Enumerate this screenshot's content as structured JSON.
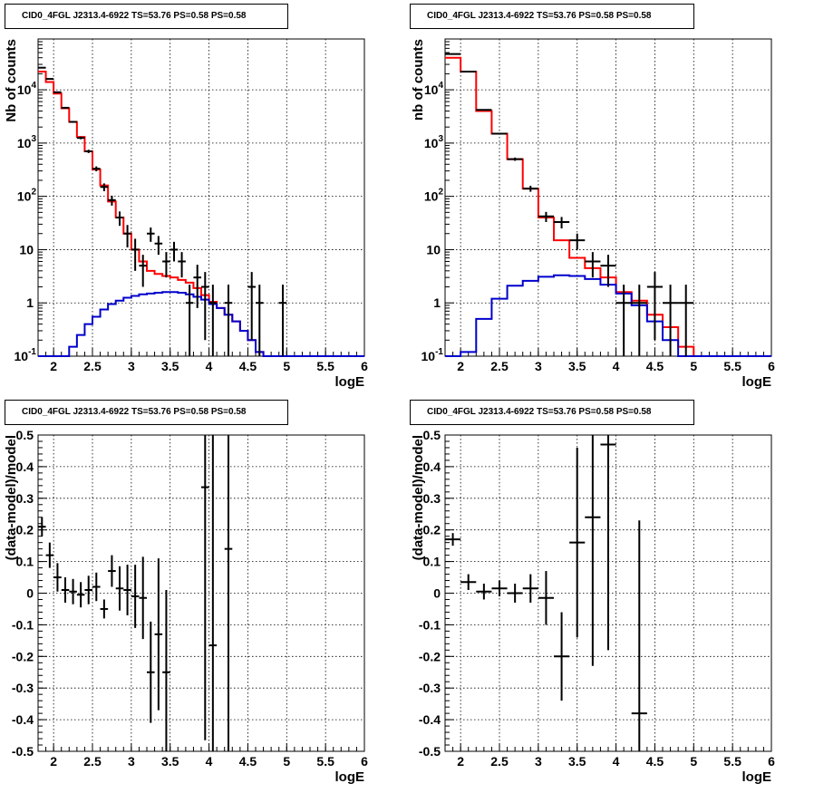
{
  "chart_data": [
    {
      "type": "line",
      "title": "CID0_4FGL J2313.4-6922 TS=53.76 PS=0.58 PS=0.58",
      "xlabel": "logE",
      "ylabel": "Nb of counts",
      "ylog": true,
      "xlim": [
        1.8,
        6.0
      ],
      "ylim": [
        0.1,
        90000
      ],
      "grid": true,
      "x_ticks": [
        "2",
        "2.5",
        "3",
        "3.5",
        "4",
        "4.5",
        "5",
        "5.5",
        "6"
      ],
      "y_ticks": [
        "10^-1",
        "1",
        "10",
        "10^2",
        "10^3",
        "10^4"
      ],
      "hist_edges": [
        1.8,
        1.9,
        2.0,
        2.1,
        2.2,
        2.3,
        2.4,
        2.5,
        2.6,
        2.7,
        2.8,
        2.9,
        3.0,
        3.1,
        3.2,
        3.3,
        3.4,
        3.5,
        3.6,
        3.7,
        3.8,
        3.9,
        4.0,
        4.1,
        4.2,
        4.3,
        4.4,
        4.5,
        4.6,
        4.7,
        4.8,
        4.9,
        5.0,
        5.1,
        5.2,
        5.3,
        5.4,
        5.5,
        5.6,
        5.7,
        5.8,
        5.9,
        6.0
      ],
      "series": [
        {
          "name": "",
          "kind": "hist",
          "color": "#ff0000",
          "values": [
            22000,
            14000,
            8500,
            4500,
            2500,
            1300,
            700,
            320,
            160,
            80,
            40,
            20,
            10,
            6,
            4,
            3.5,
            3.2,
            3,
            2.7,
            2.4,
            1.9,
            1.4,
            1.05,
            0.8,
            0.6,
            0.45,
            0.3,
            0.2,
            0.12,
            0.1,
            0.1,
            0.1,
            0.1,
            0.1,
            0.1,
            0.1,
            0.1,
            0.1,
            0.1,
            0.1,
            0.1,
            0.1
          ]
        },
        {
          "name": "",
          "kind": "hist",
          "color": "#0000cc",
          "values": [
            0.1,
            0.1,
            0.1,
            0.1,
            0.15,
            0.25,
            0.4,
            0.55,
            0.75,
            0.95,
            1.1,
            1.25,
            1.35,
            1.45,
            1.5,
            1.55,
            1.6,
            1.6,
            1.55,
            1.45,
            1.3,
            1.15,
            0.95,
            0.8,
            0.6,
            0.45,
            0.3,
            0.2,
            0.12,
            0.1,
            0.1,
            0.1,
            0.1,
            0.1,
            0.1,
            0.1,
            0.1,
            0.1,
            0.1,
            0.1,
            0.1,
            0.1
          ]
        },
        {
          "name": "",
          "kind": "points",
          "color": "#000000",
          "x": [
            1.85,
            1.95,
            2.05,
            2.15,
            2.25,
            2.35,
            2.45,
            2.55,
            2.65,
            2.75,
            2.85,
            2.95,
            3.05,
            3.15,
            3.25,
            3.35,
            3.45,
            3.55,
            3.65,
            3.75,
            3.85,
            3.95,
            4.05,
            4.25,
            4.55,
            4.65,
            4.95
          ],
          "y": [
            26000,
            16000,
            9000,
            4600,
            2500,
            1250,
            700,
            330,
            150,
            85,
            40,
            20,
            10,
            5,
            20,
            13,
            6,
            10,
            6,
            1,
            3,
            2,
            1,
            1,
            2,
            1,
            1
          ],
          "yerr": [
            300,
            250,
            190,
            130,
            100,
            70,
            50,
            35,
            25,
            18,
            12,
            9,
            6,
            3,
            6,
            5,
            3,
            4,
            3,
            1.2,
            2.2,
            1.8,
            1.2,
            1.2,
            1.8,
            1.2,
            1.2
          ]
        }
      ]
    },
    {
      "type": "line",
      "title": "CID0_4FGL J2313.4-6922 TS=53.76 PS=0.58 PS=0.58",
      "xlabel": "logE",
      "ylabel": "nb of counts",
      "ylog": true,
      "xlim": [
        1.8,
        6.0
      ],
      "ylim": [
        0.1,
        90000
      ],
      "grid": true,
      "x_ticks": [
        "2",
        "2.5",
        "3",
        "3.5",
        "4",
        "4.5",
        "5",
        "5.5",
        "6"
      ],
      "y_ticks": [
        "10^-1",
        "1",
        "10",
        "10^2",
        "10^3",
        "10^4"
      ],
      "hist_edges": [
        1.8,
        2.0,
        2.2,
        2.4,
        2.6,
        2.8,
        3.0,
        3.2,
        3.4,
        3.6,
        3.8,
        4.0,
        4.2,
        4.4,
        4.6,
        4.8,
        5.0,
        5.2,
        5.4,
        5.6,
        5.8,
        6.0
      ],
      "series": [
        {
          "name": "",
          "kind": "hist",
          "color": "#ff0000",
          "values": [
            40000,
            22000,
            4000,
            1500,
            500,
            140,
            40,
            15,
            7,
            4.5,
            3,
            1.6,
            1.1,
            0.6,
            0.35,
            0.15,
            0.1,
            0.1,
            0.1,
            0.1,
            0.1
          ]
        },
        {
          "name": "",
          "kind": "hist",
          "color": "#0000cc",
          "values": [
            0.1,
            0.12,
            0.5,
            1.2,
            2.1,
            2.6,
            3.1,
            3.3,
            3.2,
            2.8,
            2.2,
            1.5,
            0.9,
            0.45,
            0.2,
            0.1,
            0.1,
            0.1,
            0.1,
            0.1,
            0.1
          ]
        },
        {
          "name": "",
          "kind": "points",
          "color": "#000000",
          "x": [
            1.9,
            2.1,
            2.3,
            2.5,
            2.7,
            2.9,
            3.1,
            3.3,
            3.5,
            3.7,
            3.9,
            4.1,
            4.3,
            4.5,
            4.7,
            4.9
          ],
          "y": [
            47000,
            22000,
            4200,
            1500,
            500,
            140,
            42,
            33,
            15,
            6,
            5,
            1,
            1,
            2,
            1,
            1
          ],
          "yerr": [
            400,
            250,
            100,
            60,
            35,
            18,
            9,
            8,
            5,
            3,
            3,
            1.2,
            1.2,
            1.8,
            1.2,
            1.2
          ]
        }
      ]
    },
    {
      "type": "scatter",
      "title": "CID0_4FGL J2313.4-6922 TS=53.76 PS=0.58 PS=0.58",
      "xlabel": "logE",
      "ylabel": "(data-model)/model",
      "ylog": false,
      "xlim": [
        1.8,
        6.0
      ],
      "ylim": [
        -0.5,
        0.5
      ],
      "grid": true,
      "x_ticks": [
        "2",
        "2.5",
        "3",
        "3.5",
        "4",
        "4.5",
        "5",
        "5.5",
        "6"
      ],
      "y_ticks": [
        "-0.5",
        "-0.4",
        "-0.3",
        "-0.2",
        "-0.1",
        "0",
        "0.1",
        "0.2",
        "0.3",
        "0.4",
        "0.5"
      ],
      "series": [
        {
          "name": "",
          "kind": "points",
          "color": "#000000",
          "x": [
            1.85,
            1.95,
            2.05,
            2.15,
            2.25,
            2.35,
            2.45,
            2.55,
            2.65,
            2.75,
            2.85,
            2.95,
            3.05,
            3.15,
            3.25,
            3.35,
            3.45,
            3.95,
            4.05,
            4.25
          ],
          "y": [
            0.21,
            0.12,
            0.05,
            0.01,
            0.005,
            -0.005,
            0.01,
            0.02,
            -0.05,
            0.07,
            0.015,
            0.01,
            -0.01,
            -0.015,
            -0.25,
            -0.13,
            -0.25,
            0.335,
            -0.165,
            0.14
          ],
          "yerr": [
            0.03,
            0.04,
            0.045,
            0.04,
            0.04,
            0.04,
            0.045,
            0.045,
            0.03,
            0.05,
            0.07,
            0.08,
            0.1,
            0.13,
            0.16,
            0.24,
            0.26,
            0.8,
            0.8,
            0.75
          ]
        }
      ]
    },
    {
      "type": "scatter",
      "title": "CID0_4FGL J2313.4-6922 TS=53.76 PS=0.58 PS=0.58",
      "xlabel": "logE",
      "ylabel": "(data-model)/model",
      "ylog": false,
      "xlim": [
        1.8,
        6.0
      ],
      "ylim": [
        -0.5,
        0.5
      ],
      "grid": true,
      "x_ticks": [
        "2",
        "2.5",
        "3",
        "3.5",
        "4",
        "4.5",
        "5",
        "5.5",
        "6"
      ],
      "y_ticks": [
        "-0.5",
        "-0.4",
        "-0.3",
        "-0.2",
        "-0.1",
        "0",
        "0.1",
        "0.2",
        "0.3",
        "0.4",
        "0.5"
      ],
      "series": [
        {
          "name": "",
          "kind": "points",
          "color": "#000000",
          "x": [
            1.9,
            2.1,
            2.3,
            2.5,
            2.7,
            2.9,
            3.1,
            3.3,
            3.5,
            3.7,
            3.9,
            4.3
          ],
          "y": [
            0.17,
            0.035,
            0.005,
            0.015,
            0.0,
            0.015,
            -0.015,
            -0.2,
            0.16,
            0.24,
            0.47,
            -0.38
          ],
          "yerr": [
            0.02,
            0.025,
            0.025,
            0.025,
            0.03,
            0.045,
            0.085,
            0.14,
            0.3,
            0.47,
            0.65,
            0.61
          ]
        }
      ]
    }
  ]
}
